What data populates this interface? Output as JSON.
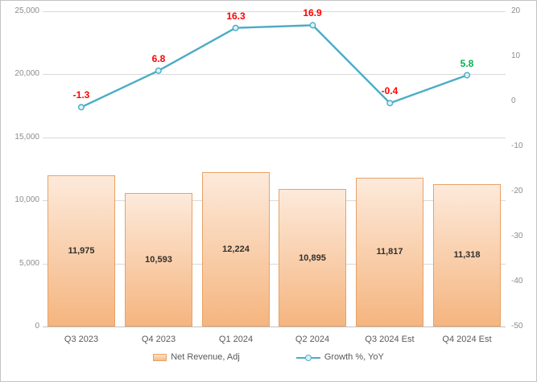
{
  "chart_data": {
    "type": "combo",
    "title": "",
    "categories": [
      "Q3 2023",
      "Q4 2023",
      "Q1 2024",
      "Q2 2024",
      "Q3 2024 Est",
      "Q4 2024 Est"
    ],
    "series": [
      {
        "name": "Net Revenue, Adj",
        "type": "bar",
        "axis": "left",
        "values": [
          11975,
          10593,
          12224,
          10895,
          11817,
          11318
        ],
        "labels": [
          "11,975",
          "10,593",
          "12,224",
          "10,895",
          "11,817",
          "11,318"
        ]
      },
      {
        "name": "Growth %, YoY",
        "type": "line",
        "axis": "right",
        "values": [
          -1.3,
          6.8,
          16.3,
          16.9,
          -0.4,
          5.8
        ],
        "labels": [
          "-1.3",
          "6.8",
          "16.3",
          "16.9",
          "-0.4",
          "5.8"
        ],
        "label_colors": [
          "#ff0000",
          "#ff0000",
          "#ff0000",
          "#ff0000",
          "#ff0000",
          "#00b050"
        ]
      }
    ],
    "left_axis": {
      "min": 0,
      "max": 25000,
      "ticks": [
        {
          "value": 25000,
          "label": "25,000"
        },
        {
          "value": 20000,
          "label": "20,000"
        },
        {
          "value": 15000,
          "label": "15,000"
        },
        {
          "value": 10000,
          "label": "10,000"
        },
        {
          "value": 5000,
          "label": "5,000"
        },
        {
          "value": 0,
          "label": "0"
        }
      ]
    },
    "right_axis": {
      "min": -50,
      "max": 20,
      "ticks": [
        {
          "value": 20,
          "label": "20"
        },
        {
          "value": 10,
          "label": "10"
        },
        {
          "value": 0,
          "label": "0"
        },
        {
          "value": -10,
          "label": "-10"
        },
        {
          "value": -20,
          "label": "-20"
        },
        {
          "value": -30,
          "label": "-30"
        },
        {
          "value": -40,
          "label": "-40"
        },
        {
          "value": -50,
          "label": "-50"
        }
      ]
    },
    "grid": "horizontal-left-axis",
    "legend_position": "bottom",
    "colors": {
      "bar_fill_top": "#fdeadb",
      "bar_fill_bottom": "#f5b57f",
      "bar_border": "#e8a267",
      "line": "#4bacc6",
      "marker_fill": "#ddf0f8",
      "gridline": "#d9d9d9",
      "axis_line": "#c2c2c2",
      "axis_text": "#8c8c8c",
      "category_text": "#595959",
      "bar_label_text": "#33302c"
    }
  }
}
